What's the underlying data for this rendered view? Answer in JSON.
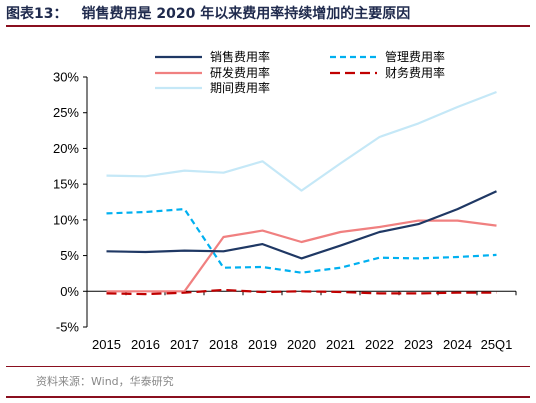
{
  "header": {
    "figure_number": "图表13：",
    "title": "销售费用是 2020 年以来费用率持续增加的主要原因"
  },
  "source": "资料来源：Wind，华泰研究",
  "chart_data": {
    "type": "line",
    "title": "销售费用是 2020 年以来费用率持续增加的主要原因",
    "categories": [
      "2015",
      "2016",
      "2017",
      "2018",
      "2019",
      "2020",
      "2021",
      "2022",
      "2023",
      "2024",
      "25Q1"
    ],
    "ylim": [
      -5,
      30
    ],
    "yticks": [
      "-5%",
      "0%",
      "5%",
      "10%",
      "15%",
      "20%",
      "25%",
      "30%"
    ],
    "ytick_values": [
      -5,
      0,
      5,
      10,
      15,
      20,
      25,
      30
    ],
    "legend_position": "top",
    "series": [
      {
        "name": "销售费用率",
        "color": "#1f3864",
        "dash": "solid",
        "values": [
          5.6,
          5.5,
          5.7,
          5.6,
          6.6,
          4.6,
          6.4,
          8.3,
          9.4,
          11.5,
          14.0
        ]
      },
      {
        "name": "管理费用率",
        "color": "#00b0f0",
        "dash": "dashed",
        "values": [
          10.9,
          11.1,
          11.5,
          3.3,
          3.4,
          2.6,
          3.3,
          4.7,
          4.6,
          4.8,
          5.1
        ]
      },
      {
        "name": "研发费用率",
        "color": "#f08080",
        "dash": "solid",
        "values": [
          0,
          0,
          0,
          7.6,
          8.5,
          6.9,
          8.3,
          9.0,
          9.9,
          9.9,
          9.2
        ]
      },
      {
        "name": "财务费用率",
        "color": "#c00000",
        "dash": "longdash",
        "values": [
          -0.3,
          -0.4,
          -0.2,
          0.2,
          -0.1,
          0.0,
          -0.1,
          -0.3,
          -0.3,
          -0.2,
          -0.2
        ]
      },
      {
        "name": "期间费用率",
        "color": "#c5e8f7",
        "dash": "solid",
        "values": [
          16.2,
          16.1,
          16.9,
          16.6,
          18.2,
          14.1,
          17.9,
          21.6,
          23.5,
          25.8,
          27.9
        ]
      }
    ]
  }
}
